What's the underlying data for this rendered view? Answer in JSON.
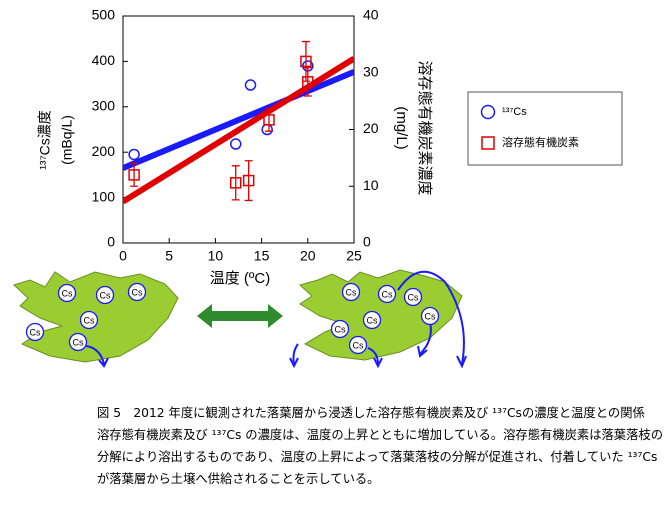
{
  "chart_data": {
    "type": "scatter",
    "x_label": "温度 (ºC)",
    "y_label": [
      "¹³⁷Cs濃度",
      "(mBq/L)"
    ],
    "y2_label": [
      "溶存態有機炭素濃度",
      "(mg/L)"
    ],
    "xlim": [
      0,
      25
    ],
    "xticks": [
      0,
      5,
      10,
      15,
      20,
      25
    ],
    "ylim": [
      0,
      500
    ],
    "yticks": [
      0,
      100,
      200,
      300,
      400,
      500
    ],
    "y2lim": [
      0,
      40
    ],
    "y2ticks": [
      0,
      10,
      20,
      30,
      40
    ],
    "series": [
      {
        "name": "¹³⁷Cs",
        "color": "#1a1aff",
        "marker": "circle",
        "x": [
          1.2,
          12.2,
          13.8,
          15.6,
          20.0
        ],
        "values": [
          195,
          218,
          348,
          250,
          390
        ],
        "fit_x": [
          0,
          25
        ],
        "fit_values": [
          165,
          377
        ]
      },
      {
        "name": "溶存態有機炭素",
        "color": "#e00000",
        "marker": "square",
        "axis": "y2",
        "x": [
          1.2,
          12.2,
          13.6,
          15.8,
          19.8,
          20.0
        ],
        "values": [
          12,
          10.6,
          11,
          21.7,
          32,
          28.4
        ],
        "errors": [
          2,
          3,
          3.5,
          2,
          3.5,
          2.5
        ],
        "fit_x": [
          0,
          25
        ],
        "fit_values": [
          7.3,
          32.5
        ]
      }
    ],
    "legend": "right"
  },
  "diagram": {
    "left_leaf": {
      "labels": [
        "Cs",
        "Cs",
        "Cs",
        "Cs",
        "Cs",
        "Cs"
      ]
    },
    "right_leaf": {
      "labels": [
        "Cs",
        "Cs",
        "Cs",
        "Cs",
        "Cs",
        "Cs",
        "Cs"
      ]
    }
  },
  "caption": {
    "title": "図 5　2012 年度に観測された落葉層から浸透した溶存態有機炭素及び ¹³⁷Csの濃度と温度との関係",
    "body": "溶存態有機炭素及び ¹³⁷Cs の濃度は、温度の上昇とともに増加している。溶存態有機炭素は落葉落枝の分解により溶出するものであり、温度の上昇によって落葉落枝の分解が促進され、付着していた ¹³⁷Csが落葉層から土壌へ供給されることを示している。"
  }
}
